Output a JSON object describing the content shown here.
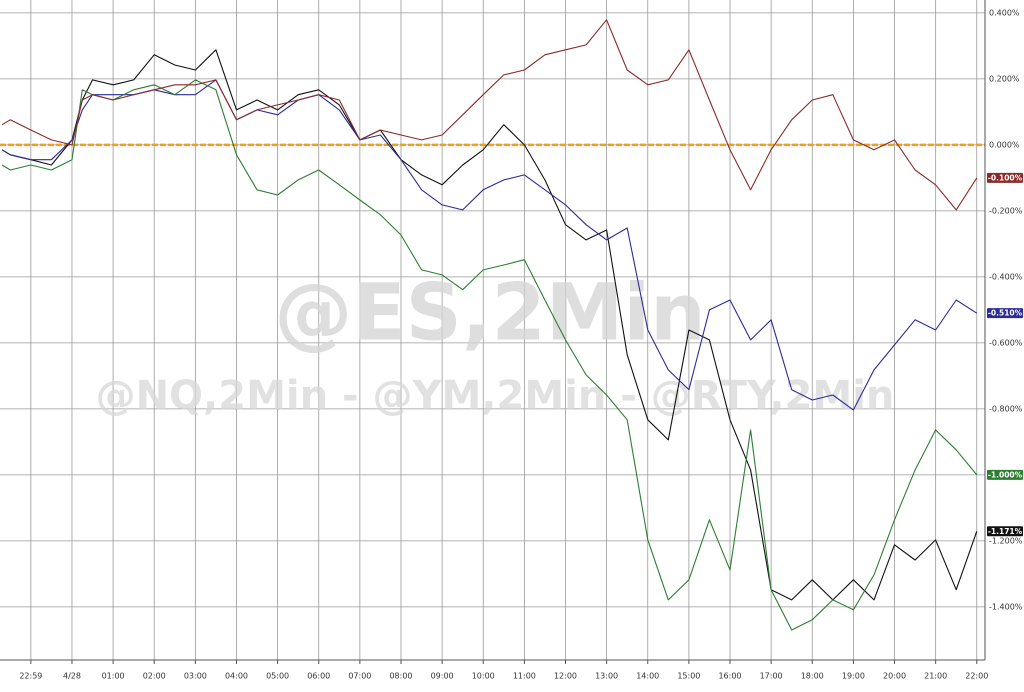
{
  "chart_data": {
    "type": "line",
    "watermark": "@ES,2Min",
    "subwatermark": "@NQ,2Min - @YM,2Min - @RTY,2Min",
    "x": [
      -1.7,
      -1.5,
      -1,
      -0.5,
      0,
      0.25,
      0.5,
      1,
      1.5,
      2,
      2.5,
      3,
      3.5,
      4,
      4.5,
      5,
      5.5,
      6,
      6.5,
      7,
      7.5,
      8,
      8.5,
      9,
      9.5,
      10,
      10.5,
      11,
      11.5,
      12,
      12.5,
      13,
      13.5,
      14,
      14.5,
      15,
      15.5,
      16,
      16.5,
      17,
      17.5,
      18,
      18.5,
      19,
      19.5,
      20,
      20.5,
      21,
      21.5,
      22
    ],
    "xlim": [
      -1.75,
      22.2
    ],
    "xticks": [
      {
        "value": -1,
        "label": "22:59"
      },
      {
        "value": 0,
        "label": "4/28"
      },
      {
        "value": 1,
        "label": "01:00"
      },
      {
        "value": 2,
        "label": "02:00"
      },
      {
        "value": 3,
        "label": "03:00"
      },
      {
        "value": 4,
        "label": "04:00"
      },
      {
        "value": 5,
        "label": "05:00"
      },
      {
        "value": 6,
        "label": "06:00"
      },
      {
        "value": 7,
        "label": "07:00"
      },
      {
        "value": 8,
        "label": "08:00"
      },
      {
        "value": 9,
        "label": "09:00"
      },
      {
        "value": 10,
        "label": "10:00"
      },
      {
        "value": 11,
        "label": "11:00"
      },
      {
        "value": 12,
        "label": "12:00"
      },
      {
        "value": 13,
        "label": "13:00"
      },
      {
        "value": 14,
        "label": "14:00"
      },
      {
        "value": 15,
        "label": "15:00"
      },
      {
        "value": 16,
        "label": "16:00"
      },
      {
        "value": 17,
        "label": "17:00"
      },
      {
        "value": 18,
        "label": "18:00"
      },
      {
        "value": 19,
        "label": "19:00"
      },
      {
        "value": 20,
        "label": "20:00"
      },
      {
        "value": 21,
        "label": "21:00"
      },
      {
        "value": 22,
        "label": "22:00"
      }
    ],
    "ylim": [
      -1.561,
      0.439
    ],
    "yticks": [
      {
        "value": 0.4,
        "label": "0.400%"
      },
      {
        "value": 0.2,
        "label": "0.200%"
      },
      {
        "value": 0,
        "label": "0.000%"
      },
      {
        "value": -0.2,
        "label": "-0.200%"
      },
      {
        "value": -0.4,
        "label": "-0.400%"
      },
      {
        "value": -0.6,
        "label": "-0.600%"
      },
      {
        "value": -0.8,
        "label": "-0.800%"
      },
      {
        "value": -1.0,
        "label": "-1.000%"
      },
      {
        "value": -1.2,
        "label": "-1.200%"
      },
      {
        "value": -1.4,
        "label": "-1.400%"
      }
    ],
    "grid": true,
    "zero_line": {
      "value": 0,
      "color": "#f0a020"
    },
    "series": [
      {
        "name": "ES",
        "color": "#111111",
        "end_label": "-1.171%",
        "values": [
          -0.015,
          -0.03,
          -0.045,
          -0.061,
          0.015,
          0.136,
          0.197,
          0.182,
          0.197,
          0.273,
          0.242,
          0.227,
          0.288,
          0.106,
          0.136,
          0.106,
          0.152,
          0.167,
          0.121,
          0.015,
          0.045,
          -0.045,
          -0.091,
          -0.121,
          -0.061,
          -0.015,
          0.061,
          0,
          -0.106,
          -0.242,
          -0.288,
          -0.258,
          -0.636,
          -0.833,
          -0.894,
          -0.561,
          -0.591,
          -0.833,
          -0.985,
          -1.348,
          -1.379,
          -1.318,
          -1.379,
          -1.318,
          -1.379,
          -1.212,
          -1.258,
          -1.197,
          -1.348,
          -1.171
        ]
      },
      {
        "name": "NQ",
        "color": "#2b2b9a",
        "end_label": "-0.510%",
        "values": [
          -0.015,
          -0.03,
          -0.045,
          -0.045,
          0.015,
          0.106,
          0.152,
          0.152,
          0.152,
          0.167,
          0.152,
          0.152,
          0.197,
          0.076,
          0.106,
          0.091,
          0.136,
          0.152,
          0.106,
          0.015,
          0.03,
          -0.045,
          -0.136,
          -0.182,
          -0.197,
          -0.136,
          -0.106,
          -0.091,
          -0.136,
          -0.182,
          -0.242,
          -0.288,
          -0.252,
          -0.561,
          -0.682,
          -0.742,
          -0.5,
          -0.47,
          -0.591,
          -0.53,
          -0.742,
          -0.773,
          -0.758,
          -0.803,
          -0.682,
          -0.606,
          -0.53,
          -0.561,
          -0.47,
          -0.51
        ]
      },
      {
        "name": "RTY",
        "color": "#2e7d32",
        "end_label": "-1.000%",
        "values": [
          -0.061,
          -0.076,
          -0.061,
          -0.076,
          -0.045,
          0.167,
          0.152,
          0.136,
          0.167,
          0.182,
          0.152,
          0.197,
          0.167,
          -0.03,
          -0.136,
          -0.152,
          -0.106,
          -0.076,
          -0.121,
          -0.167,
          -0.212,
          -0.273,
          -0.379,
          -0.394,
          -0.439,
          -0.379,
          -0.364,
          -0.348,
          -0.47,
          -0.591,
          -0.697,
          -0.758,
          -0.833,
          -1.197,
          -1.379,
          -1.318,
          -1.136,
          -1.288,
          -0.864,
          -1.348,
          -1.47,
          -1.439,
          -1.379,
          -1.409,
          -1.303,
          -1.136,
          -0.985,
          -0.864,
          -0.924,
          -1.0
        ]
      },
      {
        "name": "YM",
        "color": "#8b2a2a",
        "end_label": "-0.100%",
        "values": [
          0.061,
          0.076,
          0.045,
          0.015,
          0,
          0.136,
          0.152,
          0.136,
          0.152,
          0.167,
          0.182,
          0.182,
          0.197,
          0.076,
          0.106,
          0.121,
          0.136,
          0.152,
          0.136,
          0.015,
          0.045,
          0.03,
          0.015,
          0.03,
          0.091,
          0.152,
          0.212,
          0.227,
          0.273,
          0.288,
          0.303,
          0.379,
          0.227,
          0.182,
          0.197,
          0.288,
          0.136,
          -0.015,
          -0.136,
          -0.015,
          0.076,
          0.136,
          0.152,
          0.015,
          -0.015,
          0.015,
          -0.076,
          -0.121,
          -0.197,
          -0.1
        ]
      }
    ]
  }
}
